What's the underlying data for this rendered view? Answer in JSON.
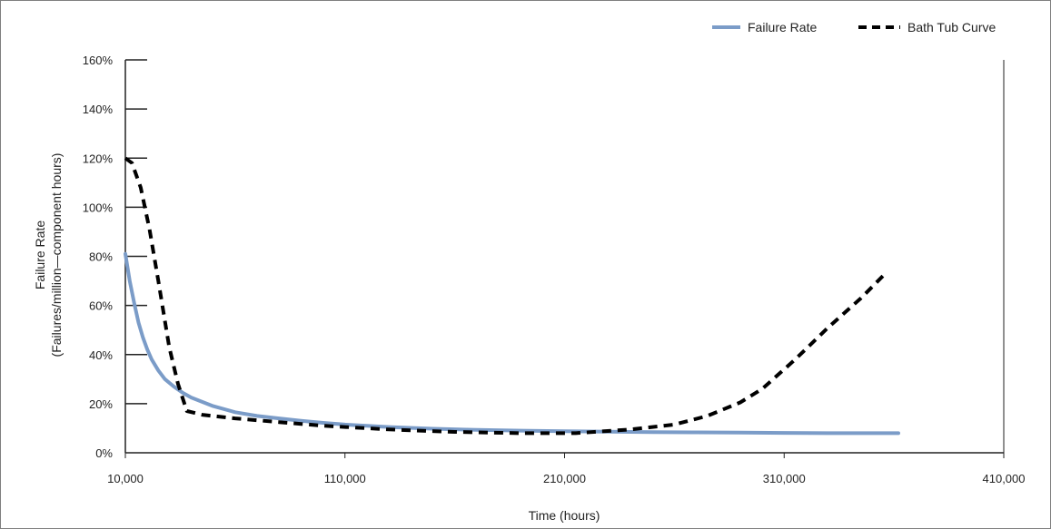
{
  "chart_data": {
    "type": "line",
    "title": "",
    "xlabel": "Time (hours)",
    "ylabel_lines": [
      "Failure Rate",
      "(Failures/million—component hours)"
    ],
    "xlim": [
      10000,
      410000
    ],
    "ylim": [
      0,
      160
    ],
    "x_ticks": [
      10000,
      110000,
      210000,
      310000,
      410000
    ],
    "x_tick_labels": [
      "10,000",
      "110,000",
      "210,000",
      "310,000",
      "410,000"
    ],
    "y_ticks": [
      0,
      20,
      40,
      60,
      80,
      100,
      120,
      140,
      160
    ],
    "y_tick_labels": [
      "0%",
      "20%",
      "40%",
      "60%",
      "80%",
      "100%",
      "120%",
      "140%",
      "160%"
    ],
    "grid": false,
    "legend_position": "top-right",
    "series": [
      {
        "name": "Failure Rate",
        "style": "solid",
        "color": "#7b9cc8",
        "points": [
          [
            10000,
            81
          ],
          [
            12000,
            70
          ],
          [
            14000,
            61
          ],
          [
            16000,
            53
          ],
          [
            18000,
            47
          ],
          [
            20000,
            42
          ],
          [
            22000,
            38
          ],
          [
            25000,
            33.5
          ],
          [
            28000,
            30
          ],
          [
            32000,
            27
          ],
          [
            36000,
            24.5
          ],
          [
            40000,
            22.5
          ],
          [
            50000,
            19
          ],
          [
            60000,
            16.5
          ],
          [
            70000,
            15
          ],
          [
            80000,
            14
          ],
          [
            90000,
            13
          ],
          [
            100000,
            12.2
          ],
          [
            110000,
            11.5
          ],
          [
            130000,
            10.5
          ],
          [
            150000,
            9.8
          ],
          [
            170000,
            9.3
          ],
          [
            190000,
            9
          ],
          [
            210000,
            8.8
          ],
          [
            230000,
            8.6
          ],
          [
            250000,
            8.4
          ],
          [
            270000,
            8.3
          ],
          [
            290000,
            8.2
          ],
          [
            310000,
            8.1
          ],
          [
            330000,
            8
          ],
          [
            350000,
            8
          ],
          [
            362000,
            8
          ]
        ]
      },
      {
        "name": "Bath Tub Curve",
        "style": "dashed",
        "color": "#000000",
        "points": [
          [
            10000,
            120
          ],
          [
            13000,
            118
          ],
          [
            17000,
            108
          ],
          [
            21000,
            91
          ],
          [
            25000,
            70
          ],
          [
            30000,
            43
          ],
          [
            34000,
            28
          ],
          [
            38000,
            17
          ],
          [
            45000,
            15.5
          ],
          [
            60000,
            14
          ],
          [
            80000,
            12.5
          ],
          [
            100000,
            11
          ],
          [
            130000,
            9.5
          ],
          [
            160000,
            8.5
          ],
          [
            190000,
            8
          ],
          [
            215000,
            8
          ],
          [
            240000,
            9.5
          ],
          [
            260000,
            11.5
          ],
          [
            275000,
            15
          ],
          [
            290000,
            20.5
          ],
          [
            300000,
            26
          ],
          [
            315000,
            38
          ],
          [
            330000,
            51
          ],
          [
            345000,
            63
          ],
          [
            355000,
            72
          ]
        ]
      }
    ]
  }
}
